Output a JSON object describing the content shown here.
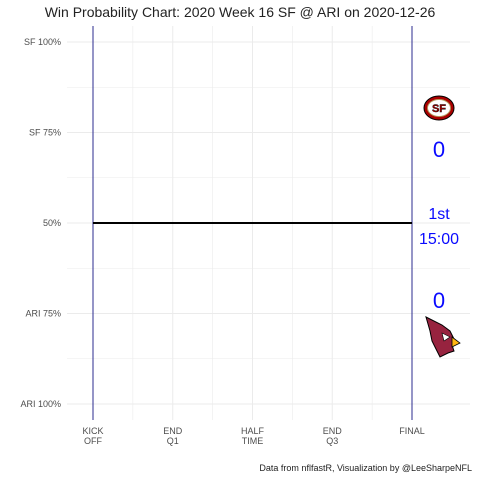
{
  "chart_data": {
    "type": "line",
    "title": "Win Probability Chart: 2020 Week 16 SF @ ARI on 2020-12-26",
    "caption": "Data from nflfastR, Visualization by @LeeSharpeNFL",
    "y_axis": {
      "min": 0,
      "max": 1,
      "ticks": [
        {
          "value": 1.0,
          "label": "SF 100%"
        },
        {
          "value": 0.75,
          "label": "SF 75%"
        },
        {
          "value": 0.5,
          "label": "50%"
        },
        {
          "value": 0.25,
          "label": "ARI 75%"
        },
        {
          "value": 0.0,
          "label": "ARI 100%"
        }
      ]
    },
    "x_axis": {
      "min": 0,
      "max": 4,
      "ticks": [
        {
          "value": 0,
          "label": [
            "KICK",
            "OFF"
          ]
        },
        {
          "value": 1,
          "label": [
            "END",
            "Q1"
          ]
        },
        {
          "value": 2,
          "label": [
            "HALF",
            "TIME"
          ]
        },
        {
          "value": 3,
          "label": [
            "END",
            "Q3"
          ]
        },
        {
          "value": 4,
          "label": [
            "FINAL"
          ]
        }
      ]
    },
    "series": [
      {
        "x": [
          0,
          4
        ],
        "y": [
          0.5,
          0.5
        ],
        "color": "#000000"
      }
    ],
    "reference_lines": [
      {
        "x": 0,
        "color": "#2b2b8f"
      },
      {
        "x": 4,
        "color": "#2b2b8f"
      }
    ],
    "annotations": {
      "home_score": "0",
      "away_score": "0",
      "period": "1st",
      "clock": "15:00",
      "text_color": "#0a0aff"
    },
    "logos": [
      {
        "team": "SF",
        "icon": "sf-49ers-logo",
        "colors": [
          "#aa0000",
          "#b3995d"
        ]
      },
      {
        "team": "ARI",
        "icon": "ari-cardinals-logo",
        "colors": [
          "#97233f",
          "#ffb612"
        ]
      }
    ],
    "grid": true,
    "colors": {
      "grid": "#ebebeb",
      "axis_text": "#4d4d4d"
    }
  }
}
